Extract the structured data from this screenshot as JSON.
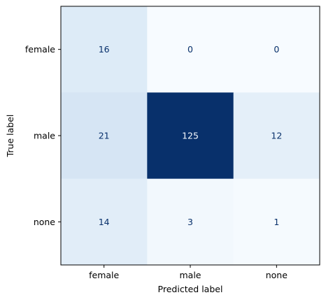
{
  "chart_data": {
    "type": "heatmap",
    "title": "",
    "xlabel": "Predicted label",
    "ylabel": "True label",
    "x_categories": [
      "female",
      "male",
      "none"
    ],
    "y_categories": [
      "female",
      "male",
      "none"
    ],
    "values": [
      [
        16,
        0,
        0
      ],
      [
        21,
        125,
        12
      ],
      [
        14,
        3,
        1
      ]
    ],
    "colormap": "Blues",
    "colorbar": false,
    "colors": {
      "low": "#f7fbff",
      "high": "#08306b",
      "text_dark": "#08306b",
      "text_light": "#f7fbff"
    }
  }
}
